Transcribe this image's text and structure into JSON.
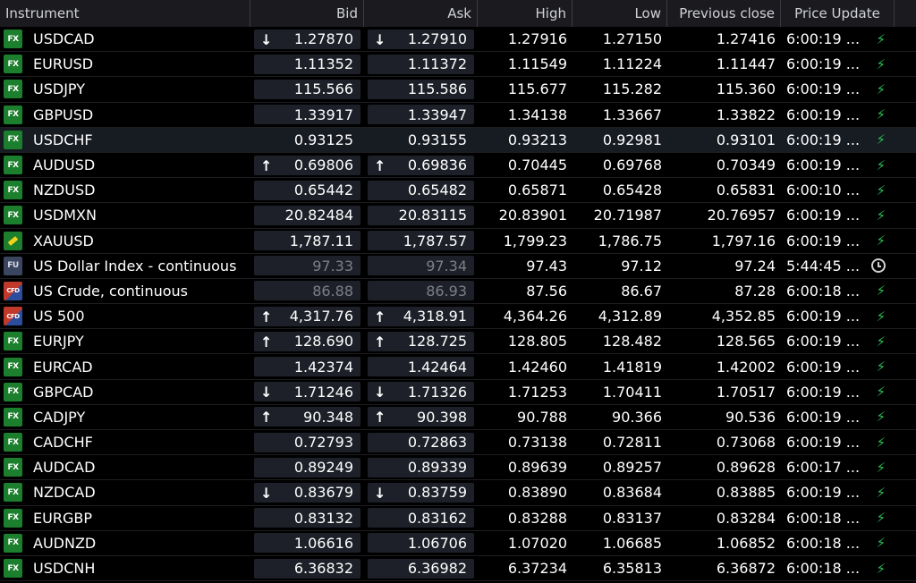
{
  "columns": {
    "instrument": "Instrument",
    "bid": "Bid",
    "ask": "Ask",
    "high": "High",
    "low": "Low",
    "prev_close": "Previous close",
    "price_update": "Price Update"
  },
  "rows": [
    {
      "badge": "FX",
      "badge_type": "fx",
      "name": "USDCAD",
      "bid": "1.27870",
      "ask": "1.27910",
      "high": "1.27916",
      "low": "1.27150",
      "prev": "1.27416",
      "time": "6:00:19 ...",
      "arrow": "down",
      "status": "bolt-icon"
    },
    {
      "badge": "FX",
      "badge_type": "fx",
      "name": "EURUSD",
      "bid": "1.11352",
      "ask": "1.11372",
      "high": "1.11549",
      "low": "1.11224",
      "prev": "1.11447",
      "time": "6:00:19 ...",
      "arrow": "",
      "status": "bolt-icon"
    },
    {
      "badge": "FX",
      "badge_type": "fx",
      "name": "USDJPY",
      "bid": "115.566",
      "ask": "115.586",
      "high": "115.677",
      "low": "115.282",
      "prev": "115.360",
      "time": "6:00:19 ...",
      "arrow": "",
      "status": "bolt-icon"
    },
    {
      "badge": "FX",
      "badge_type": "fx",
      "name": "GBPUSD",
      "bid": "1.33917",
      "ask": "1.33947",
      "high": "1.34138",
      "low": "1.33667",
      "prev": "1.33822",
      "time": "6:00:19 ...",
      "arrow": "",
      "status": "bolt-icon"
    },
    {
      "badge": "FX",
      "badge_type": "fx",
      "name": "USDCHF",
      "bid": "0.93125",
      "ask": "0.93155",
      "high": "0.93213",
      "low": "0.92981",
      "prev": "0.93101",
      "time": "6:00:19 ...",
      "arrow": "",
      "status": "bolt-icon",
      "selected": true
    },
    {
      "badge": "FX",
      "badge_type": "fx",
      "name": "AUDUSD",
      "bid": "0.69806",
      "ask": "0.69836",
      "high": "0.70445",
      "low": "0.69768",
      "prev": "0.70349",
      "time": "6:00:19 ...",
      "arrow": "up",
      "status": "bolt-icon"
    },
    {
      "badge": "FX",
      "badge_type": "fx",
      "name": "NZDUSD",
      "bid": "0.65442",
      "ask": "0.65482",
      "high": "0.65871",
      "low": "0.65428",
      "prev": "0.65831",
      "time": "6:00:10 ...",
      "arrow": "",
      "status": "bolt-icon"
    },
    {
      "badge": "FX",
      "badge_type": "fx",
      "name": "USDMXN",
      "bid": "20.82484",
      "ask": "20.83115",
      "high": "20.83901",
      "low": "20.71987",
      "prev": "20.76957",
      "time": "6:00:19 ...",
      "arrow": "",
      "status": "bolt-icon"
    },
    {
      "badge": "",
      "badge_type": "gold",
      "name": "XAUUSD",
      "bid": "1,787.11",
      "ask": "1,787.57",
      "high": "1,799.23",
      "low": "1,786.75",
      "prev": "1,797.16",
      "time": "6:00:19 ...",
      "arrow": "",
      "status": "bolt-icon"
    },
    {
      "badge": "FU",
      "badge_type": "fu",
      "name": "US Dollar Index - continuous",
      "bid": "97.33",
      "ask": "97.34",
      "high": "97.43",
      "low": "97.12",
      "prev": "97.24",
      "time": "5:44:45 ...",
      "arrow": "",
      "status": "clock-icon",
      "dim": true
    },
    {
      "badge": "CFD",
      "badge_type": "cfd",
      "name": "US Crude, continuous",
      "bid": "86.88",
      "ask": "86.93",
      "high": "87.56",
      "low": "86.67",
      "prev": "87.28",
      "time": "6:00:18 ...",
      "arrow": "",
      "status": "bolt-icon",
      "dim": true
    },
    {
      "badge": "CFD",
      "badge_type": "cfd",
      "name": "US 500",
      "bid": "4,317.76",
      "ask": "4,318.91",
      "high": "4,364.26",
      "low": "4,312.89",
      "prev": "4,352.85",
      "time": "6:00:19 ...",
      "arrow": "up",
      "status": "bolt-icon"
    },
    {
      "badge": "FX",
      "badge_type": "fx",
      "name": "EURJPY",
      "bid": "128.690",
      "ask": "128.725",
      "high": "128.805",
      "low": "128.482",
      "prev": "128.565",
      "time": "6:00:19 ...",
      "arrow": "up",
      "status": "bolt-icon"
    },
    {
      "badge": "FX",
      "badge_type": "fx",
      "name": "EURCAD",
      "bid": "1.42374",
      "ask": "1.42464",
      "high": "1.42460",
      "low": "1.41819",
      "prev": "1.42002",
      "time": "6:00:19 ...",
      "arrow": "",
      "status": "bolt-icon"
    },
    {
      "badge": "FX",
      "badge_type": "fx",
      "name": "GBPCAD",
      "bid": "1.71246",
      "ask": "1.71326",
      "high": "1.71253",
      "low": "1.70411",
      "prev": "1.70517",
      "time": "6:00:19 ...",
      "arrow": "down",
      "status": "bolt-icon"
    },
    {
      "badge": "FX",
      "badge_type": "fx",
      "name": "CADJPY",
      "bid": "90.348",
      "ask": "90.398",
      "high": "90.788",
      "low": "90.366",
      "prev": "90.536",
      "time": "6:00:19 ...",
      "arrow": "up",
      "status": "bolt-icon"
    },
    {
      "badge": "FX",
      "badge_type": "fx",
      "name": "CADCHF",
      "bid": "0.72793",
      "ask": "0.72863",
      "high": "0.73138",
      "low": "0.72811",
      "prev": "0.73068",
      "time": "6:00:19 ...",
      "arrow": "",
      "status": "bolt-icon"
    },
    {
      "badge": "FX",
      "badge_type": "fx",
      "name": "AUDCAD",
      "bid": "0.89249",
      "ask": "0.89339",
      "high": "0.89639",
      "low": "0.89257",
      "prev": "0.89628",
      "time": "6:00:17 ...",
      "arrow": "",
      "status": "bolt-icon"
    },
    {
      "badge": "FX",
      "badge_type": "fx",
      "name": "NZDCAD",
      "bid": "0.83679",
      "ask": "0.83759",
      "high": "0.83890",
      "low": "0.83684",
      "prev": "0.83885",
      "time": "6:00:19 ...",
      "arrow": "down",
      "status": "bolt-icon"
    },
    {
      "badge": "FX",
      "badge_type": "fx",
      "name": "EURGBP",
      "bid": "0.83132",
      "ask": "0.83162",
      "high": "0.83288",
      "low": "0.83137",
      "prev": "0.83284",
      "time": "6:00:18 ...",
      "arrow": "",
      "status": "bolt-icon"
    },
    {
      "badge": "FX",
      "badge_type": "fx",
      "name": "AUDNZD",
      "bid": "1.06616",
      "ask": "1.06706",
      "high": "1.07020",
      "low": "1.06685",
      "prev": "1.06852",
      "time": "6:00:18 ...",
      "arrow": "",
      "status": "bolt-icon"
    },
    {
      "badge": "FX",
      "badge_type": "fx",
      "name": "USDCNH",
      "bid": "6.36832",
      "ask": "6.36982",
      "high": "6.37234",
      "low": "6.35813",
      "prev": "6.36872",
      "time": "6:00:18 ...",
      "arrow": "",
      "status": "bolt-icon"
    }
  ],
  "colors": {
    "background": "#000000",
    "header_bg": "#1b1b1f",
    "fx_badge": "#1c7f2d",
    "bolt": "#2bbd54",
    "price_box": "#1d2028"
  }
}
